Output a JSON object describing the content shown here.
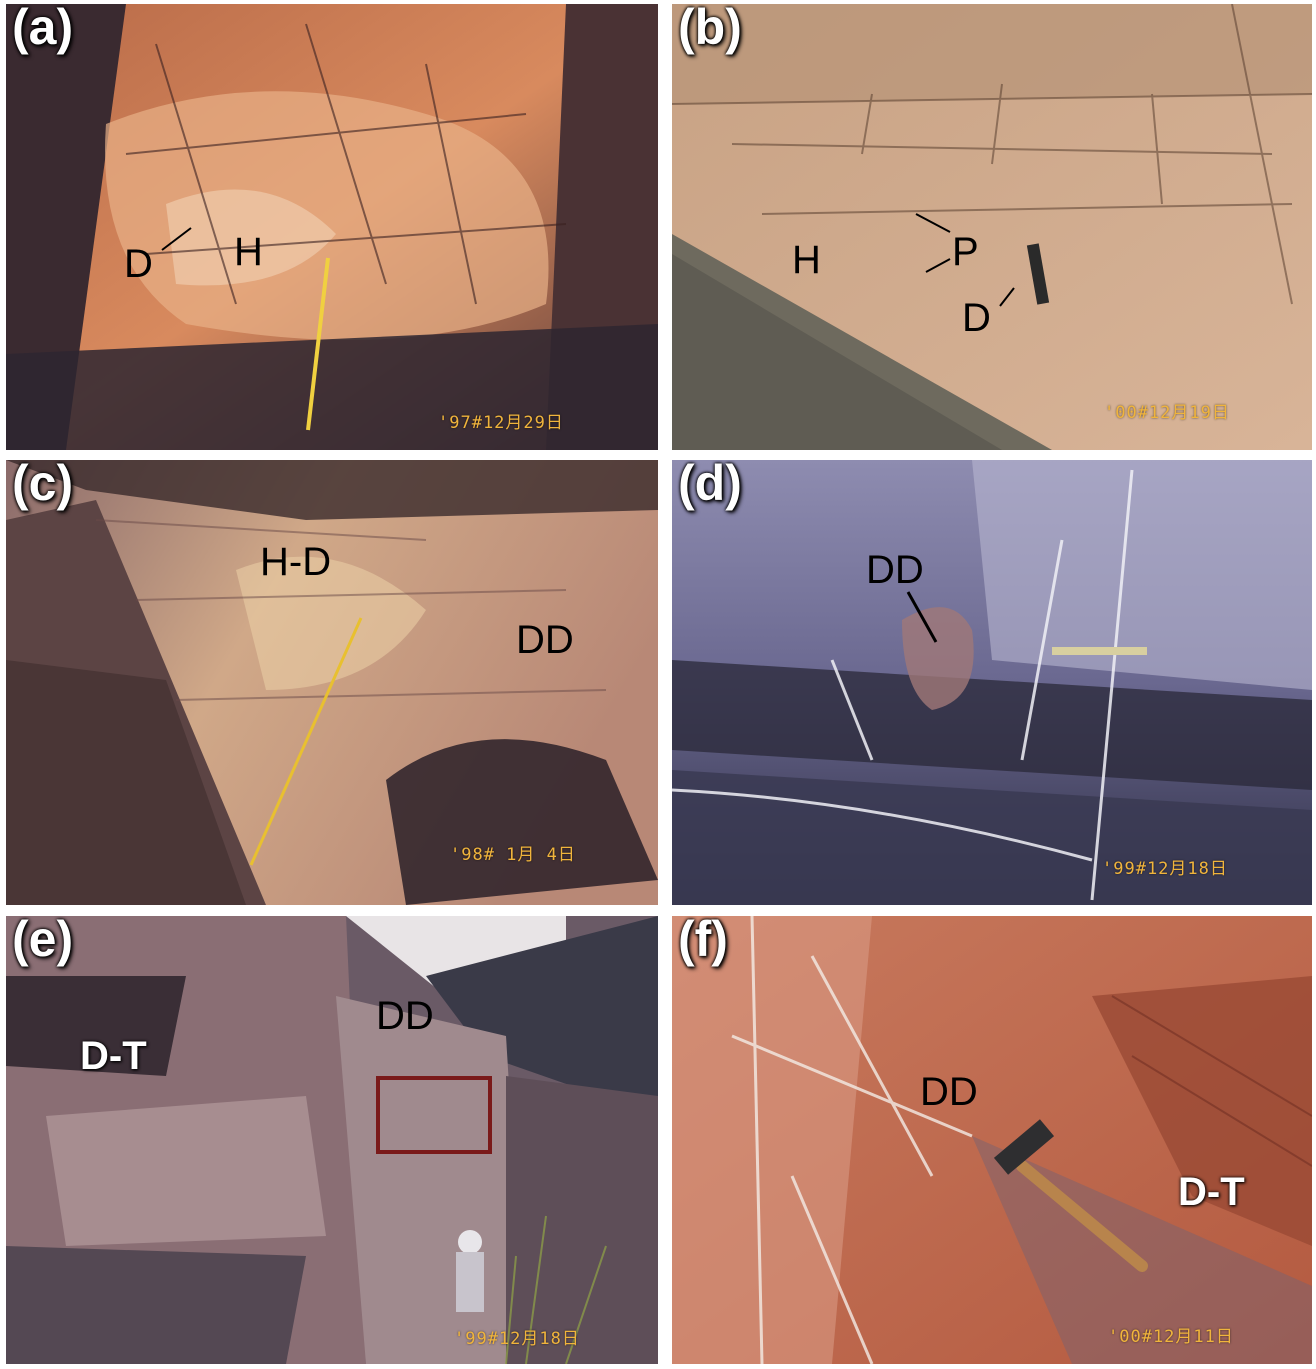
{
  "panels": {
    "a": {
      "label": "(a)",
      "date": "'97#12月29日",
      "annotations": [
        "D",
        "H"
      ]
    },
    "b": {
      "label": "(b)",
      "date": "'00#12月19日",
      "annotations": [
        "H",
        "P",
        "D"
      ]
    },
    "c": {
      "label": "(c)",
      "date": "'98# 1月 4日",
      "annotations": [
        "H-D",
        "DD"
      ]
    },
    "d": {
      "label": "(d)",
      "date": "'99#12月18日",
      "annotations": [
        "DD"
      ]
    },
    "e": {
      "label": "(e)",
      "date": "'99#12月18日",
      "annotations": [
        "DD",
        "D-T"
      ]
    },
    "f": {
      "label": "(f)",
      "date": "'00#12月11日",
      "annotations": [
        "DD",
        "D-T"
      ]
    }
  },
  "colors": {
    "date_stamp": "#f0b43c",
    "highlight_box": "#7a1a1a"
  }
}
